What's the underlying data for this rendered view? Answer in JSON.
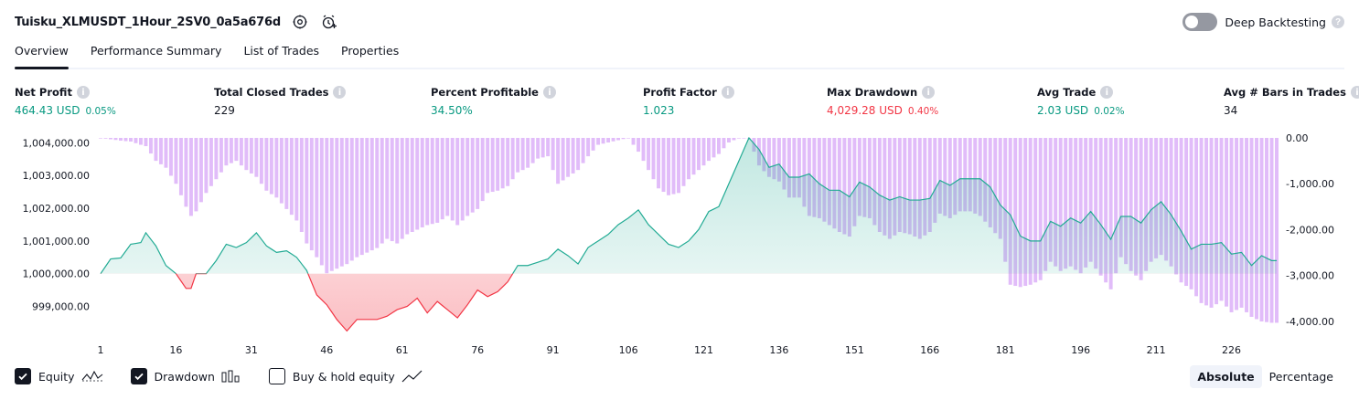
{
  "header": {
    "strategy_title": "Tuisku_XLMUSDT_1Hour_2SV0_0a5a676d",
    "deep_backtesting_label": "Deep Backtesting",
    "deep_backtesting_enabled": false
  },
  "tabs": [
    {
      "label": "Overview",
      "active": true
    },
    {
      "label": "Performance Summary",
      "active": false
    },
    {
      "label": "List of Trades",
      "active": false
    },
    {
      "label": "Properties",
      "active": false
    }
  ],
  "metrics": {
    "net_profit": {
      "label": "Net Profit",
      "value": "464.43 USD",
      "pct": "0.05%"
    },
    "total_closed_trades": {
      "label": "Total Closed Trades",
      "value": "229"
    },
    "percent_profitable": {
      "label": "Percent Profitable",
      "value": "34.50%"
    },
    "profit_factor": {
      "label": "Profit Factor",
      "value": "1.023"
    },
    "max_drawdown": {
      "label": "Max Drawdown",
      "value": "4,029.28 USD",
      "pct": "0.40%"
    },
    "avg_trade": {
      "label": "Avg Trade",
      "value": "2.03 USD",
      "pct": "0.02%"
    },
    "avg_bars": {
      "label": "Avg # Bars in Trades",
      "value": "34"
    }
  },
  "colors": {
    "positive": "#089981",
    "negative": "#f23645",
    "drawdown_bar": "#ce93f6",
    "equity_line": "#22ab94",
    "equity_fill_pos": "#22ab94",
    "equity_fill_neg": "#f23645"
  },
  "chart_data": {
    "type": "line",
    "x_ticks": [
      "1",
      "16",
      "31",
      "46",
      "61",
      "76",
      "91",
      "106",
      "121",
      "136",
      "151",
      "166",
      "181",
      "196",
      "211",
      "226"
    ],
    "y_left_ticks": [
      "1,004,000.00",
      "1,003,000.00",
      "1,002,000.00",
      "1,001,000.00",
      "1,000,000.00",
      "999,000.00"
    ],
    "y_left_range": [
      998400,
      1004150
    ],
    "y_right_ticks": [
      "0.00",
      "-1,000.00",
      "-2,000.00",
      "-3,000.00",
      "-4,000.00"
    ],
    "y_right_range": [
      -4100,
      0
    ],
    "x_range": [
      1,
      235
    ],
    "baseline": 1000000,
    "series": [
      {
        "name": "Equity",
        "anchors": [
          [
            1,
            1000000
          ],
          [
            3,
            1000450
          ],
          [
            5,
            1000480
          ],
          [
            7,
            1000900
          ],
          [
            9,
            1000950
          ],
          [
            10,
            1001250
          ],
          [
            12,
            1000850
          ],
          [
            14,
            1000250
          ],
          [
            16,
            1000000
          ],
          [
            18,
            999550
          ],
          [
            19,
            999550
          ],
          [
            20,
            1000000
          ],
          [
            22,
            1000000
          ],
          [
            24,
            1000400
          ],
          [
            26,
            1000900
          ],
          [
            28,
            1000800
          ],
          [
            30,
            1000950
          ],
          [
            32,
            1001250
          ],
          [
            34,
            1000850
          ],
          [
            36,
            1000650
          ],
          [
            38,
            1000700
          ],
          [
            40,
            1000500
          ],
          [
            42,
            1000100
          ],
          [
            44,
            999350
          ],
          [
            46,
            999050
          ],
          [
            48,
            998600
          ],
          [
            50,
            998250
          ],
          [
            52,
            998600
          ],
          [
            54,
            998600
          ],
          [
            56,
            998600
          ],
          [
            58,
            998700
          ],
          [
            60,
            998900
          ],
          [
            62,
            999000
          ],
          [
            64,
            999250
          ],
          [
            66,
            998800
          ],
          [
            68,
            999150
          ],
          [
            70,
            998900
          ],
          [
            72,
            998650
          ],
          [
            74,
            999050
          ],
          [
            76,
            999500
          ],
          [
            78,
            999300
          ],
          [
            80,
            999450
          ],
          [
            82,
            999750
          ],
          [
            84,
            1000250
          ],
          [
            86,
            1000250
          ],
          [
            88,
            1000350
          ],
          [
            90,
            1000450
          ],
          [
            92,
            1000750
          ],
          [
            94,
            1000550
          ],
          [
            96,
            1000300
          ],
          [
            98,
            1000800
          ],
          [
            100,
            1001000
          ],
          [
            102,
            1001200
          ],
          [
            104,
            1001500
          ],
          [
            106,
            1001700
          ],
          [
            108,
            1001950
          ],
          [
            110,
            1001500
          ],
          [
            112,
            1001200
          ],
          [
            114,
            1000900
          ],
          [
            116,
            1000800
          ],
          [
            118,
            1001000
          ],
          [
            120,
            1001350
          ],
          [
            122,
            1001900
          ],
          [
            124,
            1002050
          ],
          [
            126,
            1002750
          ],
          [
            128,
            1003450
          ],
          [
            130,
            1004150
          ],
          [
            132,
            1003800
          ],
          [
            134,
            1003250
          ],
          [
            136,
            1003350
          ],
          [
            138,
            1002950
          ],
          [
            140,
            1002950
          ],
          [
            142,
            1003050
          ],
          [
            144,
            1002750
          ],
          [
            146,
            1002550
          ],
          [
            148,
            1002550
          ],
          [
            150,
            1002350
          ],
          [
            152,
            1002800
          ],
          [
            154,
            1002650
          ],
          [
            156,
            1002400
          ],
          [
            158,
            1002250
          ],
          [
            160,
            1002350
          ],
          [
            162,
            1002250
          ],
          [
            164,
            1002250
          ],
          [
            166,
            1002300
          ],
          [
            168,
            1002850
          ],
          [
            170,
            1002700
          ],
          [
            172,
            1002900
          ],
          [
            174,
            1002900
          ],
          [
            176,
            1002900
          ],
          [
            178,
            1002650
          ],
          [
            180,
            1002100
          ],
          [
            182,
            1001800
          ],
          [
            184,
            1001150
          ],
          [
            186,
            1001000
          ],
          [
            188,
            1001000
          ],
          [
            190,
            1001600
          ],
          [
            192,
            1001450
          ],
          [
            194,
            1001700
          ],
          [
            196,
            1001550
          ],
          [
            198,
            1001900
          ],
          [
            200,
            1001500
          ],
          [
            202,
            1001050
          ],
          [
            204,
            1001750
          ],
          [
            206,
            1001750
          ],
          [
            208,
            1001550
          ],
          [
            210,
            1001950
          ],
          [
            212,
            1002200
          ],
          [
            214,
            1001800
          ],
          [
            216,
            1001300
          ],
          [
            218,
            1000750
          ],
          [
            220,
            1000900
          ],
          [
            222,
            1000900
          ],
          [
            224,
            1000950
          ],
          [
            226,
            1000600
          ],
          [
            228,
            1000650
          ],
          [
            230,
            1000250
          ],
          [
            232,
            1000550
          ],
          [
            234,
            1000400
          ]
        ]
      },
      {
        "name": "Drawdown",
        "anchors": [
          [
            1,
            0
          ],
          [
            3,
            -30
          ],
          [
            5,
            -60
          ],
          [
            7,
            -80
          ],
          [
            9,
            -150
          ],
          [
            10,
            -180
          ],
          [
            12,
            -500
          ],
          [
            14,
            -650
          ],
          [
            16,
            -1000
          ],
          [
            18,
            -1500
          ],
          [
            19,
            -1700
          ],
          [
            20,
            -1600
          ],
          [
            22,
            -1200
          ],
          [
            24,
            -900
          ],
          [
            26,
            -600
          ],
          [
            28,
            -500
          ],
          [
            30,
            -700
          ],
          [
            32,
            -850
          ],
          [
            34,
            -1150
          ],
          [
            36,
            -1300
          ],
          [
            38,
            -1550
          ],
          [
            40,
            -1800
          ],
          [
            42,
            -2300
          ],
          [
            44,
            -2600
          ],
          [
            46,
            -2950
          ],
          [
            48,
            -2850
          ],
          [
            50,
            -2750
          ],
          [
            52,
            -2600
          ],
          [
            54,
            -2500
          ],
          [
            56,
            -2400
          ],
          [
            58,
            -2200
          ],
          [
            60,
            -2300
          ],
          [
            62,
            -2100
          ],
          [
            64,
            -2000
          ],
          [
            66,
            -1900
          ],
          [
            68,
            -1850
          ],
          [
            70,
            -1700
          ],
          [
            72,
            -1900
          ],
          [
            74,
            -1700
          ],
          [
            76,
            -1550
          ],
          [
            78,
            -1200
          ],
          [
            80,
            -1150
          ],
          [
            82,
            -1050
          ],
          [
            84,
            -750
          ],
          [
            86,
            -650
          ],
          [
            88,
            -450
          ],
          [
            90,
            -400
          ],
          [
            92,
            -1000
          ],
          [
            94,
            -850
          ],
          [
            96,
            -700
          ],
          [
            98,
            -400
          ],
          [
            100,
            -150
          ],
          [
            102,
            -100
          ],
          [
            104,
            -50
          ],
          [
            106,
            0
          ],
          [
            108,
            -300
          ],
          [
            110,
            -700
          ],
          [
            112,
            -1100
          ],
          [
            114,
            -1250
          ],
          [
            116,
            -1200
          ],
          [
            118,
            -900
          ],
          [
            120,
            -700
          ],
          [
            122,
            -500
          ],
          [
            124,
            -350
          ],
          [
            126,
            -100
          ],
          [
            128,
            0
          ],
          [
            130,
            0
          ],
          [
            132,
            -600
          ],
          [
            134,
            -850
          ],
          [
            136,
            -950
          ],
          [
            138,
            -1300
          ],
          [
            140,
            -1300
          ],
          [
            142,
            -1700
          ],
          [
            144,
            -1750
          ],
          [
            146,
            -1900
          ],
          [
            148,
            -2050
          ],
          [
            150,
            -2150
          ],
          [
            152,
            -1700
          ],
          [
            154,
            -1750
          ],
          [
            156,
            -2050
          ],
          [
            158,
            -2200
          ],
          [
            160,
            -2050
          ],
          [
            162,
            -2100
          ],
          [
            164,
            -2200
          ],
          [
            166,
            -2050
          ],
          [
            168,
            -1650
          ],
          [
            170,
            -1750
          ],
          [
            172,
            -1600
          ],
          [
            174,
            -1600
          ],
          [
            176,
            -1700
          ],
          [
            178,
            -1950
          ],
          [
            180,
            -2200
          ],
          [
            182,
            -3200
          ],
          [
            184,
            -3250
          ],
          [
            186,
            -3200
          ],
          [
            188,
            -3100
          ],
          [
            190,
            -2700
          ],
          [
            192,
            -2900
          ],
          [
            194,
            -2800
          ],
          [
            196,
            -2950
          ],
          [
            198,
            -2700
          ],
          [
            200,
            -3000
          ],
          [
            202,
            -3300
          ],
          [
            204,
            -2600
          ],
          [
            206,
            -2900
          ],
          [
            208,
            -3100
          ],
          [
            210,
            -2700
          ],
          [
            212,
            -2550
          ],
          [
            214,
            -2800
          ],
          [
            216,
            -3150
          ],
          [
            218,
            -3300
          ],
          [
            220,
            -3600
          ],
          [
            222,
            -3700
          ],
          [
            224,
            -3550
          ],
          [
            226,
            -3800
          ],
          [
            228,
            -3700
          ],
          [
            230,
            -3900
          ],
          [
            232,
            -4000
          ],
          [
            234,
            -4029
          ]
        ]
      }
    ]
  },
  "legend": {
    "equity_label": "Equity",
    "equity_checked": true,
    "drawdown_label": "Drawdown",
    "drawdown_checked": true,
    "buyhold_label": "Buy & hold equity",
    "buyhold_checked": false
  },
  "mode": {
    "absolute_label": "Absolute",
    "percentage_label": "Percentage",
    "active": "absolute"
  }
}
